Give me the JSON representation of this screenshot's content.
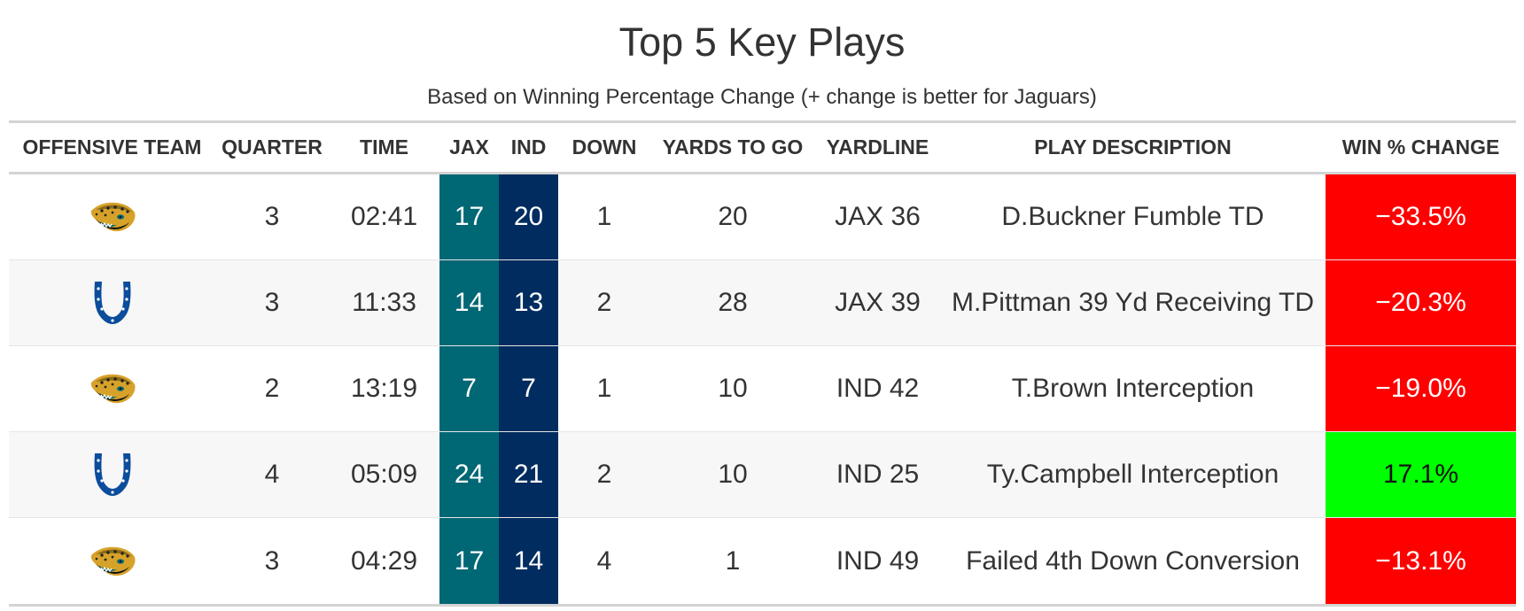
{
  "title": "Top 5 Key Plays",
  "subtitle": "Based on Winning Percentage Change (+ change is better for Jaguars)",
  "columns": {
    "team": "OFFENSIVE TEAM",
    "quarter": "QUARTER",
    "time": "TIME",
    "jax": "JAX",
    "ind": "IND",
    "down": "DOWN",
    "ytg": "YARDS TO GO",
    "yardline": "YARDLINE",
    "desc": "PLAY DESCRIPTION",
    "win": "WIN % CHANGE"
  },
  "colors": {
    "jax_fill": "#006775",
    "ind_fill": "#002c5f",
    "negative": "#ff0000",
    "positive": "#00ff00"
  },
  "rows": [
    {
      "team_icon": "jaguars-logo-icon",
      "quarter": "3",
      "time": "02:41",
      "jax": "17",
      "ind": "20",
      "down": "1",
      "ytg": "20",
      "yardline": "JAX 36",
      "desc": "D.Buckner Fumble TD",
      "win": "−33.5%"
    },
    {
      "team_icon": "colts-horseshoe-icon",
      "quarter": "3",
      "time": "11:33",
      "jax": "14",
      "ind": "13",
      "down": "2",
      "ytg": "28",
      "yardline": "JAX 39",
      "desc": "M.Pittman 39 Yd Receiving TD",
      "win": "−20.3%"
    },
    {
      "team_icon": "jaguars-logo-icon",
      "quarter": "2",
      "time": "13:19",
      "jax": "7",
      "ind": "7",
      "down": "1",
      "ytg": "10",
      "yardline": "IND 42",
      "desc": "T.Brown Interception",
      "win": "−19.0%"
    },
    {
      "team_icon": "colts-horseshoe-icon",
      "quarter": "4",
      "time": "05:09",
      "jax": "24",
      "ind": "21",
      "down": "2",
      "ytg": "10",
      "yardline": "IND 25",
      "desc": "Ty.Campbell Interception",
      "win": "17.1%"
    },
    {
      "team_icon": "jaguars-logo-icon",
      "quarter": "3",
      "time": "04:29",
      "jax": "17",
      "ind": "14",
      "down": "4",
      "ytg": "1",
      "yardline": "IND 49",
      "desc": "Failed 4th Down Conversion",
      "win": "−13.1%"
    }
  ]
}
